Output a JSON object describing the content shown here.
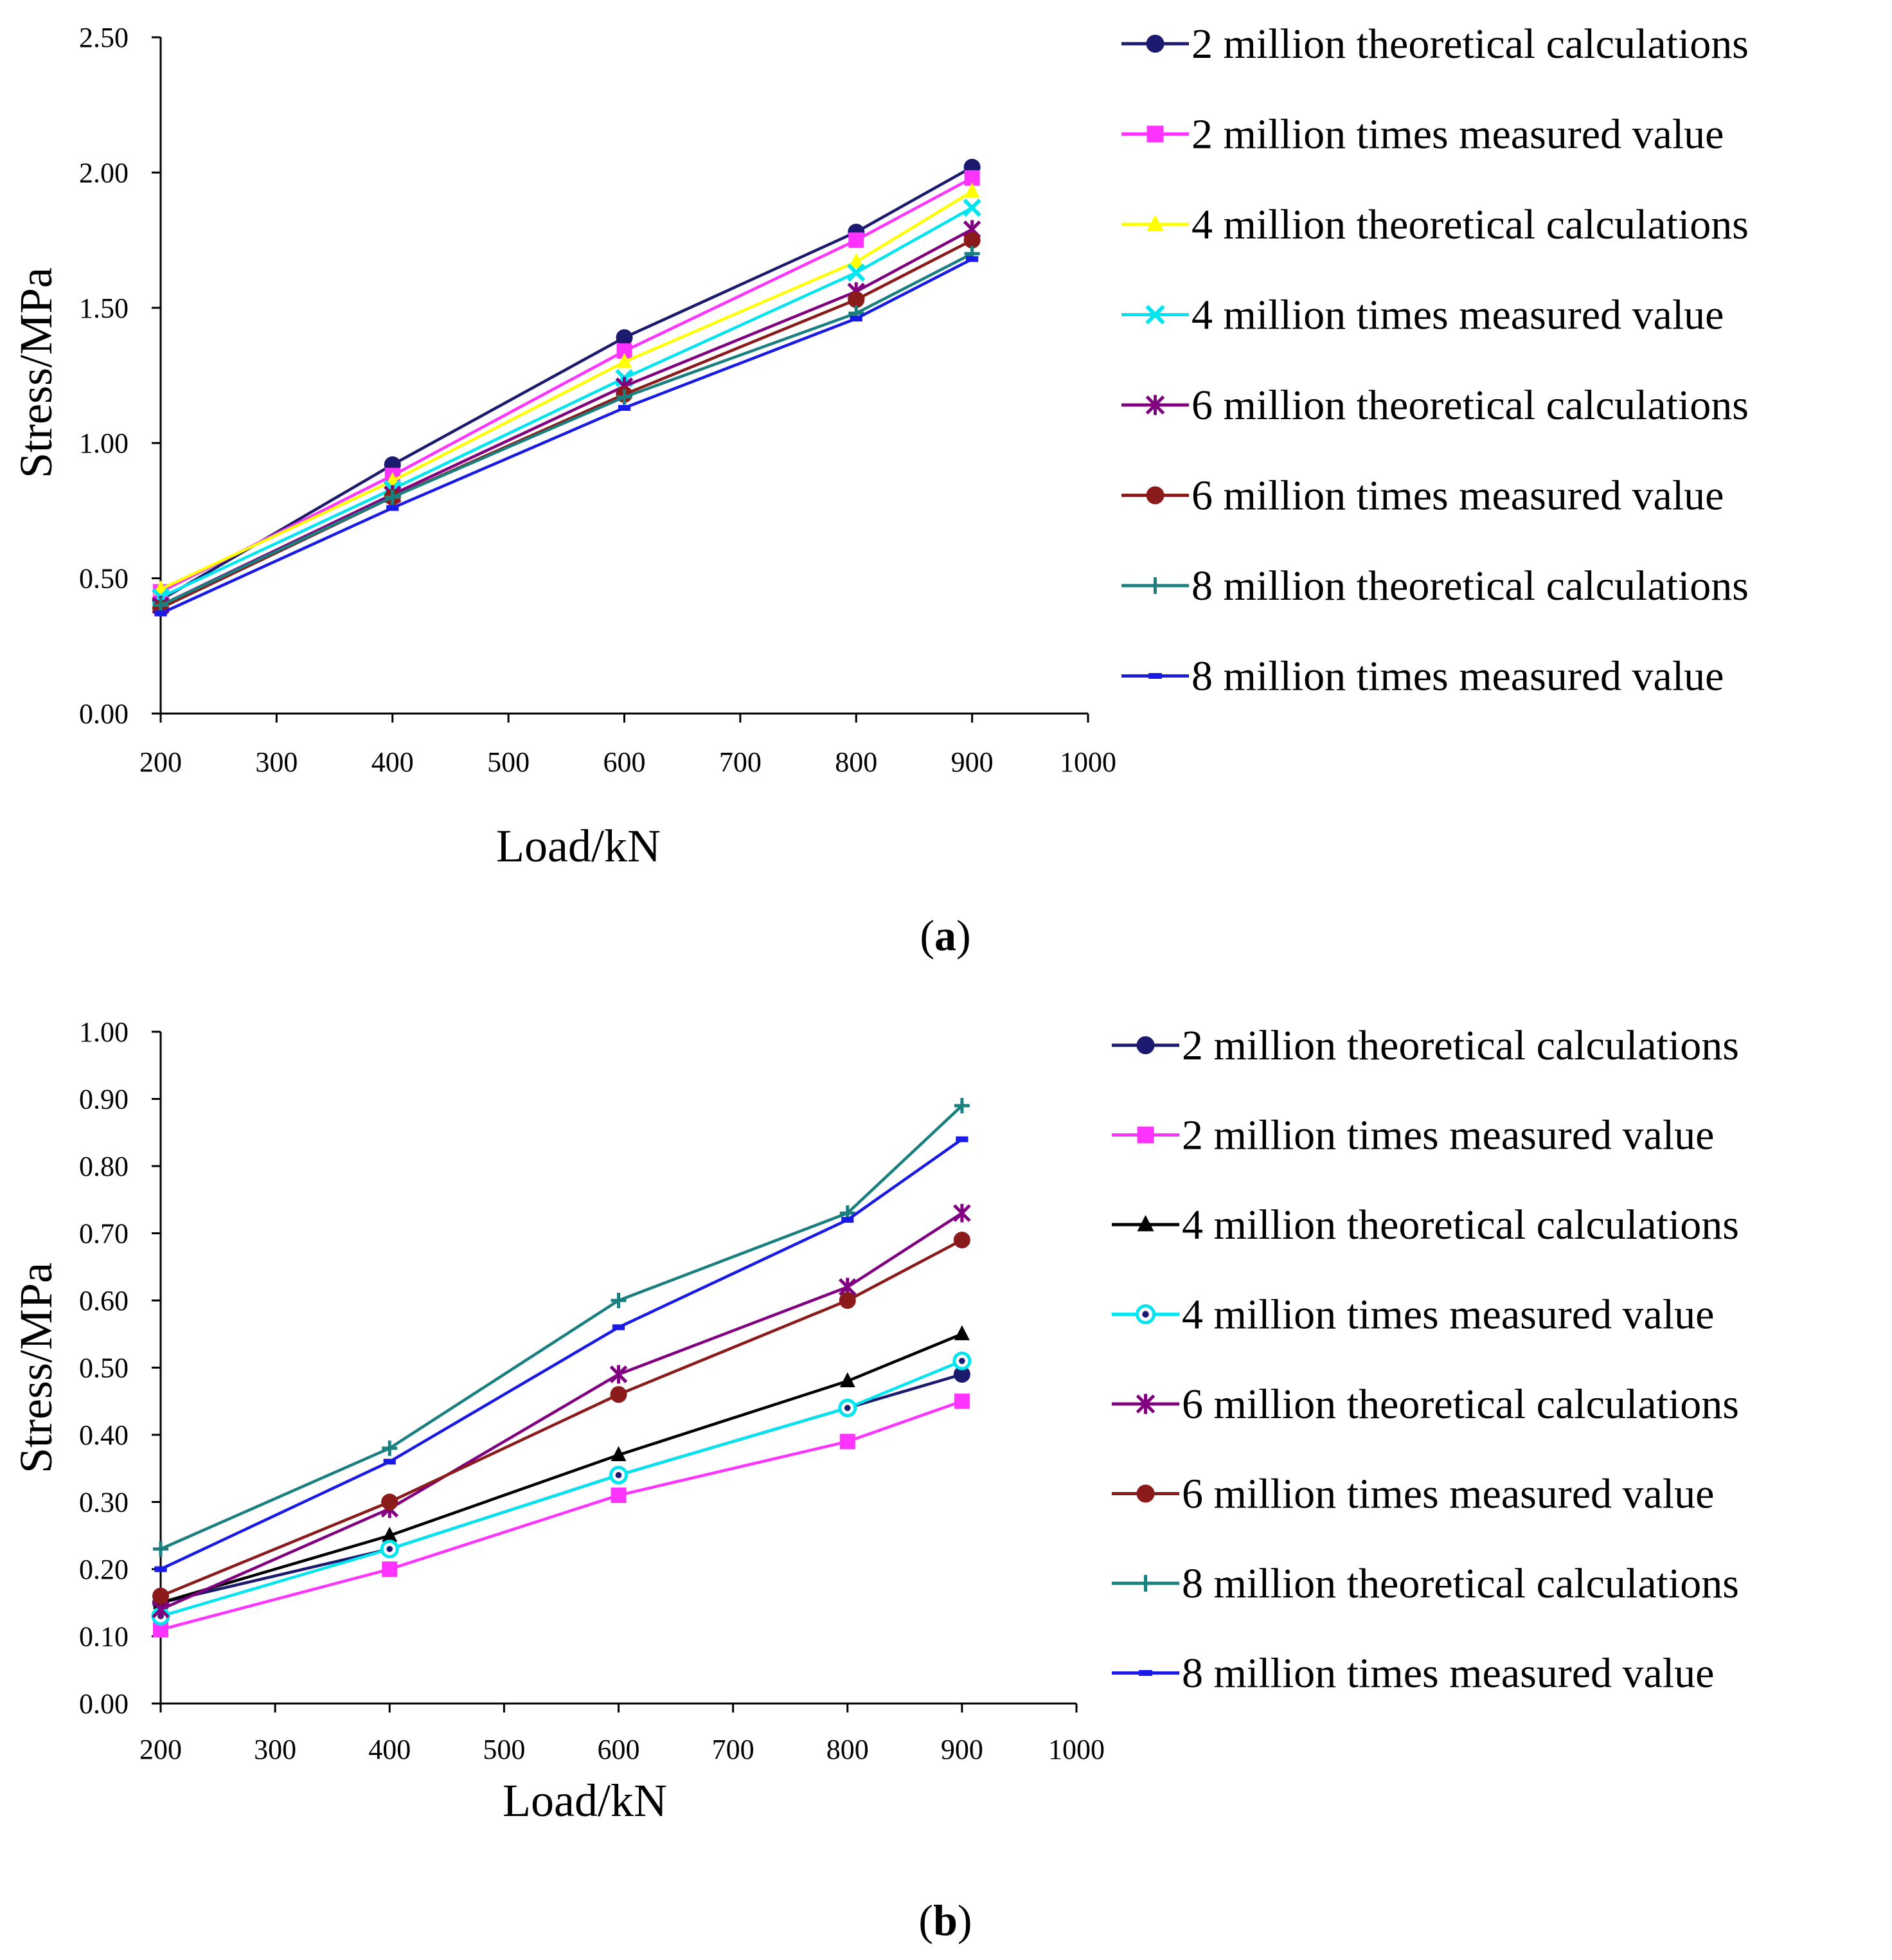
{
  "figure": {
    "panel_labels": [
      "a",
      "b"
    ]
  },
  "chart_data": [
    {
      "type": "line",
      "panel": "a",
      "title": "",
      "xlabel": "Load/kN",
      "ylabel": "Stress/MPa",
      "xlim": [
        200,
        1000
      ],
      "ylim": [
        0,
        2.5
      ],
      "x_ticks": [
        200,
        300,
        400,
        500,
        600,
        700,
        800,
        900,
        1000
      ],
      "x_tick_labels": [
        "200",
        "300",
        "400",
        "500",
        "600",
        "700",
        "800",
        "900",
        "1000"
      ],
      "y_ticks": [
        0,
        0.5,
        1,
        1.5,
        2,
        2.5
      ],
      "y_tick_labels": [
        "0.00",
        "0.50",
        "1.00",
        "1.50",
        "2.00",
        "2.50"
      ],
      "grid": false,
      "legend_position": "right",
      "x": [
        200,
        400,
        600,
        800,
        900
      ],
      "series": [
        {
          "name": "2 million theoretical calculations",
          "color": "#1b1a6e",
          "marker": "circle",
          "values": [
            0.42,
            0.92,
            1.39,
            1.78,
            2.02
          ]
        },
        {
          "name": "2 million times measured value",
          "color": "#ff33ff",
          "marker": "square",
          "values": [
            0.45,
            0.88,
            1.34,
            1.75,
            1.98
          ]
        },
        {
          "name": "4 million theoretical calculations",
          "color": "#ffff00",
          "marker": "triangle",
          "values": [
            0.46,
            0.86,
            1.3,
            1.67,
            1.93
          ]
        },
        {
          "name": "4 million times measured value",
          "color": "#00e5f0",
          "marker": "x",
          "values": [
            0.43,
            0.83,
            1.24,
            1.63,
            1.87
          ]
        },
        {
          "name": "6 million theoretical calculations",
          "color": "#800080",
          "marker": "star",
          "values": [
            0.4,
            0.81,
            1.21,
            1.56,
            1.79
          ]
        },
        {
          "name": "6 million times measured value",
          "color": "#8b1a1a",
          "marker": "circle",
          "values": [
            0.39,
            0.8,
            1.18,
            1.53,
            1.75
          ]
        },
        {
          "name": "8 million theoretical calculations",
          "color": "#1a7f7f",
          "marker": "plus",
          "values": [
            0.4,
            0.8,
            1.17,
            1.48,
            1.7
          ]
        },
        {
          "name": "8 million times measured value",
          "color": "#1a1ae6",
          "marker": "dash",
          "values": [
            0.37,
            0.76,
            1.13,
            1.46,
            1.68
          ]
        }
      ]
    },
    {
      "type": "line",
      "panel": "b",
      "title": "",
      "xlabel": "Load/kN",
      "ylabel": "Stress/MPa",
      "xlim": [
        200,
        1000
      ],
      "ylim": [
        0,
        1
      ],
      "x_ticks": [
        200,
        300,
        400,
        500,
        600,
        700,
        800,
        900,
        1000
      ],
      "x_tick_labels": [
        "200",
        "300",
        "400",
        "500",
        "600",
        "700",
        "800",
        "900",
        "1000"
      ],
      "y_ticks": [
        0,
        0.1,
        0.2,
        0.3,
        0.4,
        0.5,
        0.6,
        0.7,
        0.8,
        0.9,
        1
      ],
      "y_tick_labels": [
        "0.00",
        "0.10",
        "0.20",
        "0.30",
        "0.40",
        "0.50",
        "0.60",
        "0.70",
        "0.80",
        "0.90",
        "1.00"
      ],
      "grid": false,
      "legend_position": "right",
      "x": [
        200,
        400,
        600,
        800,
        900
      ],
      "series": [
        {
          "name": "2 million theoretical calculations",
          "color": "#1b1a6e",
          "marker": "circle",
          "values": [
            0.15,
            0.23,
            0.34,
            0.44,
            0.49
          ]
        },
        {
          "name": "2 million times measured value",
          "color": "#ff33ff",
          "marker": "square",
          "values": [
            0.11,
            0.2,
            0.31,
            0.39,
            0.45
          ]
        },
        {
          "name": "4 million theoretical calculations",
          "color": "#000000",
          "marker": "triangle",
          "values": [
            0.15,
            0.25,
            0.37,
            0.48,
            0.55
          ]
        },
        {
          "name": "4 million times measured value",
          "color": "#00e5f0",
          "marker": "ring",
          "values": [
            0.13,
            0.23,
            0.34,
            0.44,
            0.51
          ]
        },
        {
          "name": "6 million theoretical calculations",
          "color": "#800080",
          "marker": "star",
          "values": [
            0.14,
            0.29,
            0.49,
            0.62,
            0.73
          ]
        },
        {
          "name": "6 million times measured value",
          "color": "#8b1a1a",
          "marker": "circle",
          "values": [
            0.16,
            0.3,
            0.46,
            0.6,
            0.69
          ]
        },
        {
          "name": "8 million theoretical calculations",
          "color": "#1a7f7f",
          "marker": "plus",
          "values": [
            0.23,
            0.38,
            0.6,
            0.73,
            0.89
          ]
        },
        {
          "name": "8 million times measured value",
          "color": "#1a1ae6",
          "marker": "dash",
          "values": [
            0.2,
            0.36,
            0.56,
            0.72,
            0.84
          ]
        }
      ]
    }
  ]
}
